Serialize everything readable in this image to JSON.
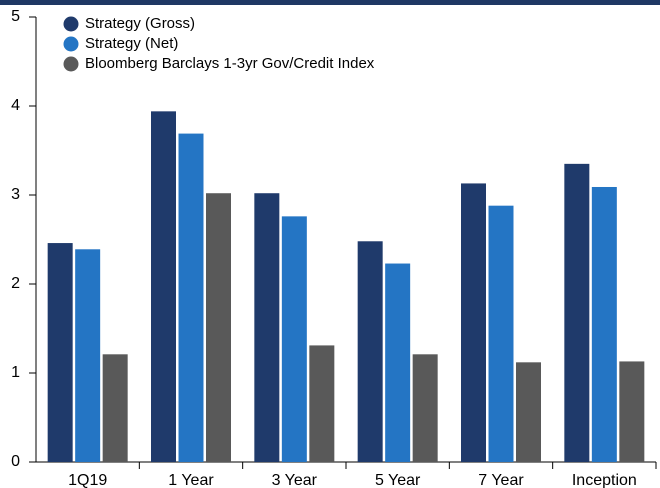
{
  "chart_data": {
    "type": "bar",
    "categories": [
      "1Q19",
      "1 Year",
      "3 Year",
      "5 Year",
      "7 Year",
      "Inception"
    ],
    "series": [
      {
        "name": "Strategy (Gross)",
        "color": "#1f3a6b",
        "values": [
          2.46,
          3.94,
          3.02,
          2.48,
          3.13,
          3.35
        ]
      },
      {
        "name": "Strategy (Net)",
        "color": "#2475c4",
        "values": [
          2.39,
          3.69,
          2.76,
          2.23,
          2.88,
          3.09
        ]
      },
      {
        "name": "Bloomberg Barclays 1-3yr Gov/Credit Index",
        "color": "#595959",
        "values": [
          1.21,
          3.02,
          1.31,
          1.21,
          1.12,
          1.13
        ]
      }
    ],
    "yticks": [
      0,
      1,
      2,
      3,
      4,
      5
    ],
    "ylim": [
      0,
      5
    ],
    "grid": false,
    "legend_position": "top-left",
    "title": "",
    "xlabel": "",
    "ylabel": ""
  }
}
